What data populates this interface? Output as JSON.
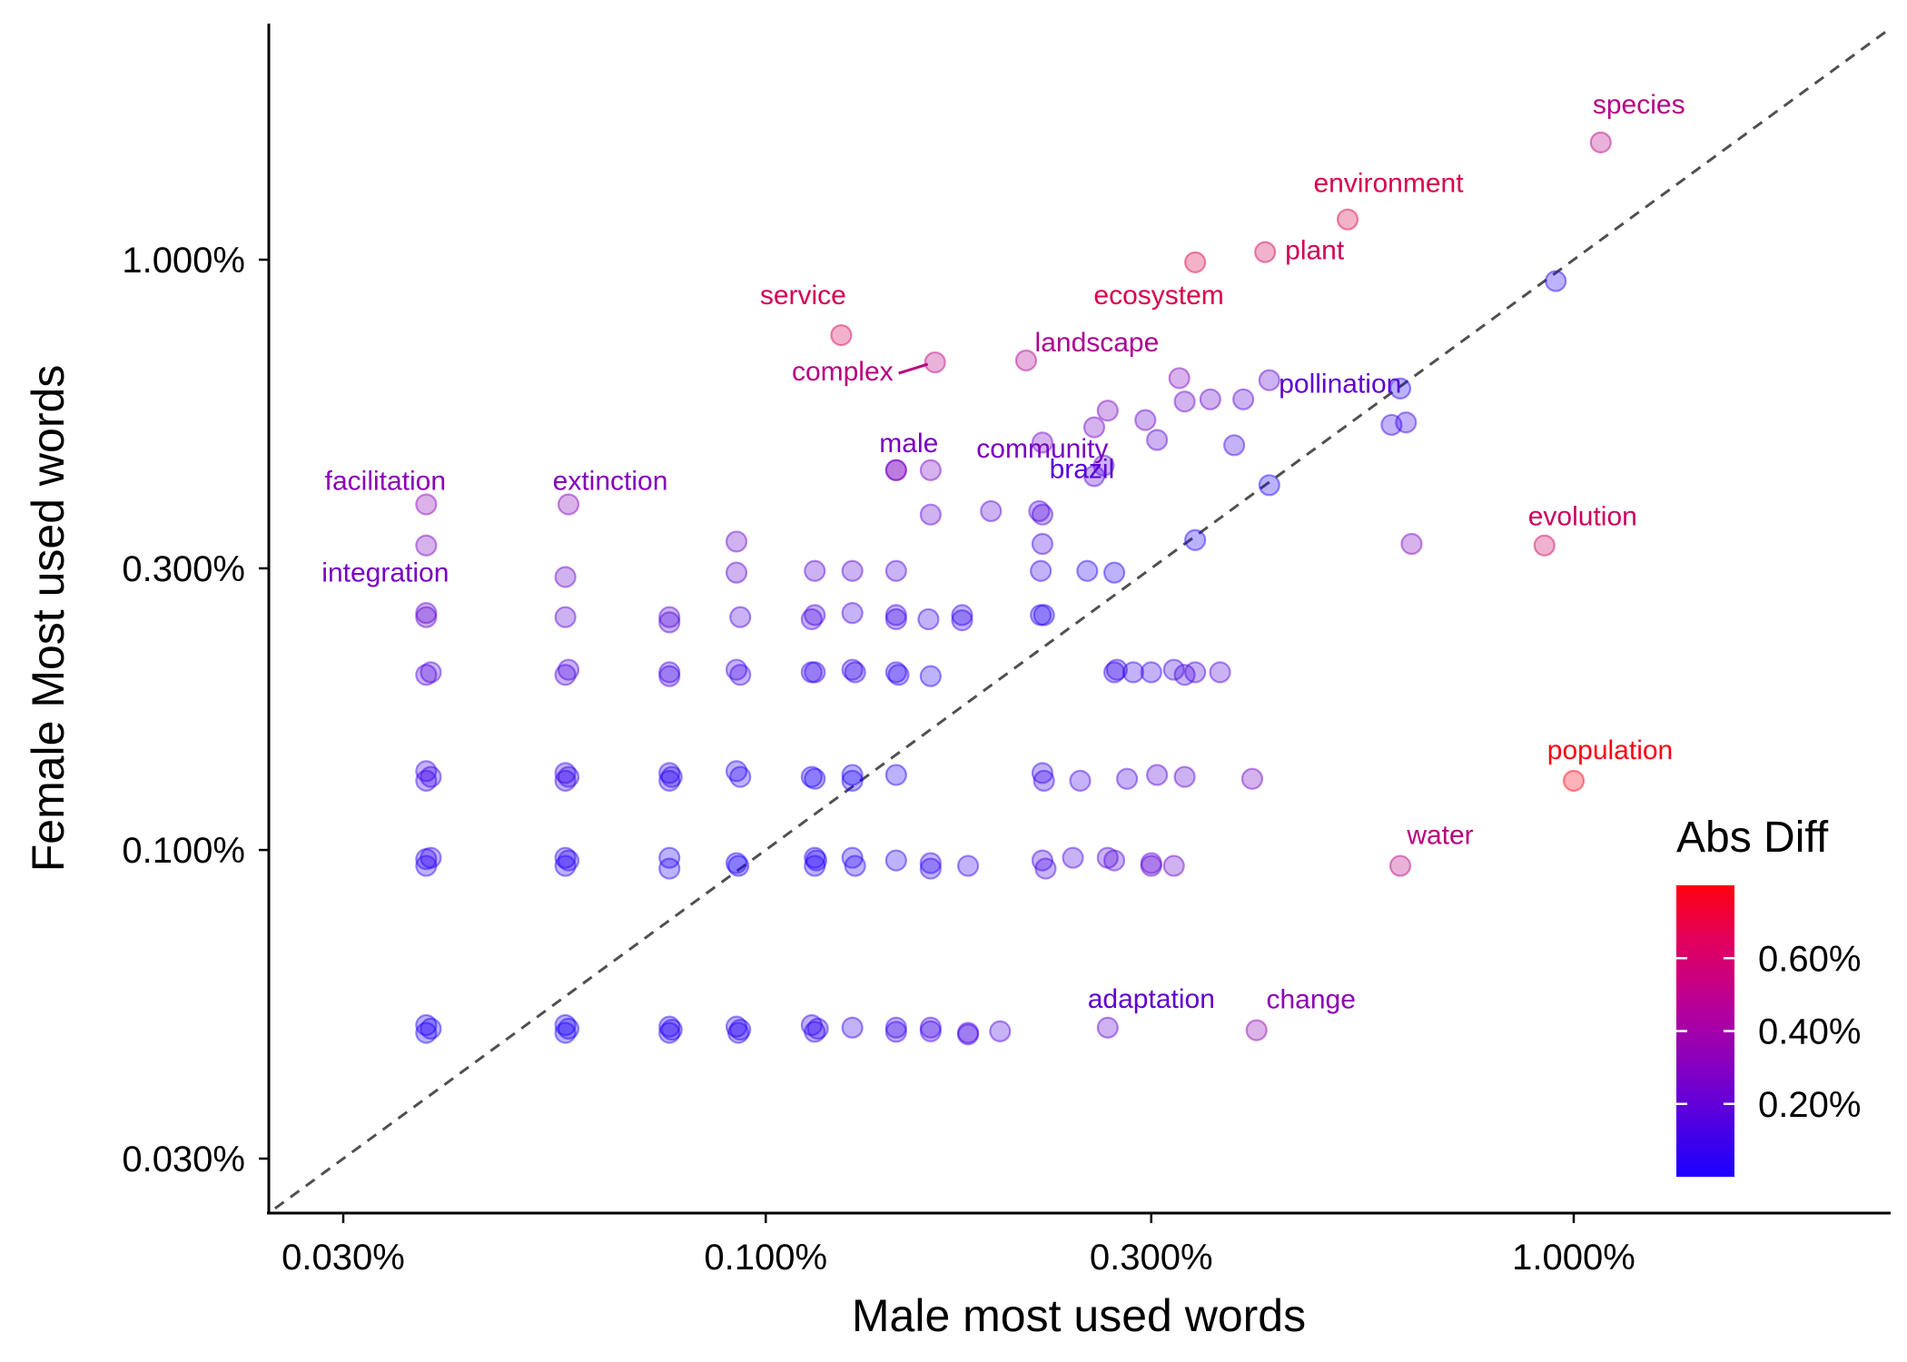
{
  "chart_data": {
    "type": "scatter",
    "xlabel": "Male most used words",
    "ylabel": "Female Most used words",
    "x_scale": "log",
    "y_scale": "log",
    "xlim": [
      0.0247,
      0.027
    ],
    "ylim": [
      0.0253,
      2.4
    ],
    "x_ticks": [
      0.03,
      0.1,
      0.3,
      1.0
    ],
    "x_tick_labels": [
      "0.030%",
      "0.100%",
      "0.300%",
      "1.000%"
    ],
    "y_ticks": [
      0.03,
      0.1,
      0.3,
      1.0
    ],
    "y_tick_labels": [
      "0.030%",
      "0.100%",
      "0.300%",
      "1.000%"
    ],
    "reference_line": "y = x (dashed)",
    "grid": false,
    "legend": {
      "title": "Abs Diff",
      "position": "bottom-right",
      "type": "colorbar",
      "min": 0.0,
      "max": 0.8,
      "ticks": [
        0.2,
        0.4,
        0.6
      ],
      "tick_labels": [
        "0.20%",
        "0.40%",
        "0.60%"
      ],
      "color_low": "#1a00ff",
      "color_mid": "#9c00aa",
      "color_high": "#ff0010"
    },
    "labeled_points": [
      {
        "word": "species",
        "x": 1.08,
        "y": 1.58
      },
      {
        "word": "environment",
        "x": 0.525,
        "y": 1.17
      },
      {
        "word": "plant",
        "x": 0.415,
        "y": 1.03
      },
      {
        "word": "ecosystem",
        "x": 0.34,
        "y": 0.99
      },
      {
        "word": "service",
        "x": 0.124,
        "y": 0.745
      },
      {
        "word": "complex",
        "x": 0.162,
        "y": 0.67
      },
      {
        "word": "landscape",
        "x": 0.21,
        "y": 0.675
      },
      {
        "word": "pollination",
        "x": 0.42,
        "y": 0.625
      },
      {
        "word": "community",
        "x": 0.265,
        "y": 0.555
      },
      {
        "word": "male",
        "x": 0.145,
        "y": 0.44
      },
      {
        "word": "brazil",
        "x": 0.262,
        "y": 0.448
      },
      {
        "word": "facilitation",
        "x": 0.038,
        "y": 0.385
      },
      {
        "word": "extinction",
        "x": 0.057,
        "y": 0.385
      },
      {
        "word": "integration",
        "x": 0.038,
        "y": 0.328
      },
      {
        "word": "evolution",
        "x": 0.92,
        "y": 0.328
      },
      {
        "word": "population",
        "x": 1.0,
        "y": 0.131
      },
      {
        "word": "water",
        "x": 0.61,
        "y": 0.094
      },
      {
        "word": "adaptation",
        "x": 0.265,
        "y": 0.05
      },
      {
        "word": "change",
        "x": 0.405,
        "y": 0.0495
      }
    ],
    "unlabeled_points": [
      {
        "x": 0.95,
        "y": 0.92
      },
      {
        "x": 0.61,
        "y": 0.605
      },
      {
        "x": 0.595,
        "y": 0.525
      },
      {
        "x": 0.62,
        "y": 0.53
      },
      {
        "x": 0.63,
        "y": 0.33
      },
      {
        "x": 0.34,
        "y": 0.335
      },
      {
        "x": 0.42,
        "y": 0.415
      },
      {
        "x": 0.38,
        "y": 0.485
      },
      {
        "x": 0.305,
        "y": 0.495
      },
      {
        "x": 0.33,
        "y": 0.575
      },
      {
        "x": 0.355,
        "y": 0.58
      },
      {
        "x": 0.39,
        "y": 0.58
      },
      {
        "x": 0.295,
        "y": 0.535
      },
      {
        "x": 0.255,
        "y": 0.52
      },
      {
        "x": 0.325,
        "y": 0.63
      },
      {
        "x": 0.22,
        "y": 0.49
      },
      {
        "x": 0.218,
        "y": 0.375
      },
      {
        "x": 0.22,
        "y": 0.37
      },
      {
        "x": 0.19,
        "y": 0.375
      },
      {
        "x": 0.22,
        "y": 0.33
      },
      {
        "x": 0.16,
        "y": 0.37
      },
      {
        "x": 0.255,
        "y": 0.43
      },
      {
        "x": 0.145,
        "y": 0.44
      },
      {
        "x": 0.16,
        "y": 0.44
      },
      {
        "x": 0.092,
        "y": 0.333
      },
      {
        "x": 0.038,
        "y": 0.252
      },
      {
        "x": 0.038,
        "y": 0.248
      },
      {
        "x": 0.0565,
        "y": 0.29
      },
      {
        "x": 0.0565,
        "y": 0.248
      },
      {
        "x": 0.076,
        "y": 0.248
      },
      {
        "x": 0.076,
        "y": 0.243
      },
      {
        "x": 0.092,
        "y": 0.295
      },
      {
        "x": 0.093,
        "y": 0.248
      },
      {
        "x": 0.115,
        "y": 0.297
      },
      {
        "x": 0.115,
        "y": 0.25
      },
      {
        "x": 0.114,
        "y": 0.246
      },
      {
        "x": 0.128,
        "y": 0.297
      },
      {
        "x": 0.128,
        "y": 0.252
      },
      {
        "x": 0.145,
        "y": 0.297
      },
      {
        "x": 0.145,
        "y": 0.25
      },
      {
        "x": 0.145,
        "y": 0.246
      },
      {
        "x": 0.159,
        "y": 0.246
      },
      {
        "x": 0.175,
        "y": 0.25
      },
      {
        "x": 0.175,
        "y": 0.245
      },
      {
        "x": 0.219,
        "y": 0.297
      },
      {
        "x": 0.219,
        "y": 0.25
      },
      {
        "x": 0.221,
        "y": 0.25
      },
      {
        "x": 0.25,
        "y": 0.297
      },
      {
        "x": 0.27,
        "y": 0.295
      },
      {
        "x": 0.038,
        "y": 0.198
      },
      {
        "x": 0.0385,
        "y": 0.2
      },
      {
        "x": 0.0565,
        "y": 0.198
      },
      {
        "x": 0.057,
        "y": 0.202
      },
      {
        "x": 0.076,
        "y": 0.197
      },
      {
        "x": 0.076,
        "y": 0.2
      },
      {
        "x": 0.092,
        "y": 0.202
      },
      {
        "x": 0.093,
        "y": 0.198
      },
      {
        "x": 0.114,
        "y": 0.2
      },
      {
        "x": 0.115,
        "y": 0.2
      },
      {
        "x": 0.128,
        "y": 0.202
      },
      {
        "x": 0.129,
        "y": 0.2
      },
      {
        "x": 0.145,
        "y": 0.2
      },
      {
        "x": 0.146,
        "y": 0.198
      },
      {
        "x": 0.16,
        "y": 0.197
      },
      {
        "x": 0.27,
        "y": 0.2
      },
      {
        "x": 0.272,
        "y": 0.202
      },
      {
        "x": 0.285,
        "y": 0.2
      },
      {
        "x": 0.3,
        "y": 0.2
      },
      {
        "x": 0.32,
        "y": 0.202
      },
      {
        "x": 0.33,
        "y": 0.198
      },
      {
        "x": 0.34,
        "y": 0.2
      },
      {
        "x": 0.365,
        "y": 0.2
      },
      {
        "x": 0.038,
        "y": 0.136
      },
      {
        "x": 0.038,
        "y": 0.131
      },
      {
        "x": 0.0385,
        "y": 0.133
      },
      {
        "x": 0.0565,
        "y": 0.135
      },
      {
        "x": 0.0565,
        "y": 0.131
      },
      {
        "x": 0.057,
        "y": 0.133
      },
      {
        "x": 0.076,
        "y": 0.135
      },
      {
        "x": 0.076,
        "y": 0.131
      },
      {
        "x": 0.0765,
        "y": 0.133
      },
      {
        "x": 0.092,
        "y": 0.136
      },
      {
        "x": 0.093,
        "y": 0.133
      },
      {
        "x": 0.114,
        "y": 0.133
      },
      {
        "x": 0.115,
        "y": 0.132
      },
      {
        "x": 0.128,
        "y": 0.134
      },
      {
        "x": 0.128,
        "y": 0.131
      },
      {
        "x": 0.145,
        "y": 0.134
      },
      {
        "x": 0.22,
        "y": 0.135
      },
      {
        "x": 0.221,
        "y": 0.131
      },
      {
        "x": 0.245,
        "y": 0.131
      },
      {
        "x": 0.28,
        "y": 0.132
      },
      {
        "x": 0.305,
        "y": 0.134
      },
      {
        "x": 0.33,
        "y": 0.133
      },
      {
        "x": 0.4,
        "y": 0.132
      },
      {
        "x": 0.038,
        "y": 0.0965
      },
      {
        "x": 0.038,
        "y": 0.094
      },
      {
        "x": 0.0385,
        "y": 0.097
      },
      {
        "x": 0.0565,
        "y": 0.097
      },
      {
        "x": 0.0565,
        "y": 0.094
      },
      {
        "x": 0.057,
        "y": 0.096
      },
      {
        "x": 0.076,
        "y": 0.097
      },
      {
        "x": 0.076,
        "y": 0.093
      },
      {
        "x": 0.092,
        "y": 0.095
      },
      {
        "x": 0.0925,
        "y": 0.094
      },
      {
        "x": 0.115,
        "y": 0.097
      },
      {
        "x": 0.115,
        "y": 0.094
      },
      {
        "x": 0.1155,
        "y": 0.096
      },
      {
        "x": 0.128,
        "y": 0.097
      },
      {
        "x": 0.129,
        "y": 0.094
      },
      {
        "x": 0.145,
        "y": 0.096
      },
      {
        "x": 0.16,
        "y": 0.095
      },
      {
        "x": 0.16,
        "y": 0.093
      },
      {
        "x": 0.178,
        "y": 0.094
      },
      {
        "x": 0.22,
        "y": 0.096
      },
      {
        "x": 0.222,
        "y": 0.093
      },
      {
        "x": 0.24,
        "y": 0.097
      },
      {
        "x": 0.265,
        "y": 0.097
      },
      {
        "x": 0.27,
        "y": 0.096
      },
      {
        "x": 0.3,
        "y": 0.095
      },
      {
        "x": 0.3,
        "y": 0.094
      },
      {
        "x": 0.32,
        "y": 0.094
      },
      {
        "x": 0.038,
        "y": 0.0505
      },
      {
        "x": 0.038,
        "y": 0.049
      },
      {
        "x": 0.0385,
        "y": 0.0498
      },
      {
        "x": 0.0565,
        "y": 0.0505
      },
      {
        "x": 0.0565,
        "y": 0.049
      },
      {
        "x": 0.057,
        "y": 0.0498
      },
      {
        "x": 0.076,
        "y": 0.0502
      },
      {
        "x": 0.076,
        "y": 0.049
      },
      {
        "x": 0.0765,
        "y": 0.0496
      },
      {
        "x": 0.092,
        "y": 0.0502
      },
      {
        "x": 0.0925,
        "y": 0.049
      },
      {
        "x": 0.093,
        "y": 0.0496
      },
      {
        "x": 0.114,
        "y": 0.0505
      },
      {
        "x": 0.115,
        "y": 0.0492
      },
      {
        "x": 0.116,
        "y": 0.0498
      },
      {
        "x": 0.128,
        "y": 0.05
      },
      {
        "x": 0.145,
        "y": 0.05
      },
      {
        "x": 0.145,
        "y": 0.0492
      },
      {
        "x": 0.16,
        "y": 0.05
      },
      {
        "x": 0.16,
        "y": 0.0493
      },
      {
        "x": 0.178,
        "y": 0.049
      },
      {
        "x": 0.178,
        "y": 0.0487
      },
      {
        "x": 0.195,
        "y": 0.0493
      }
    ]
  }
}
